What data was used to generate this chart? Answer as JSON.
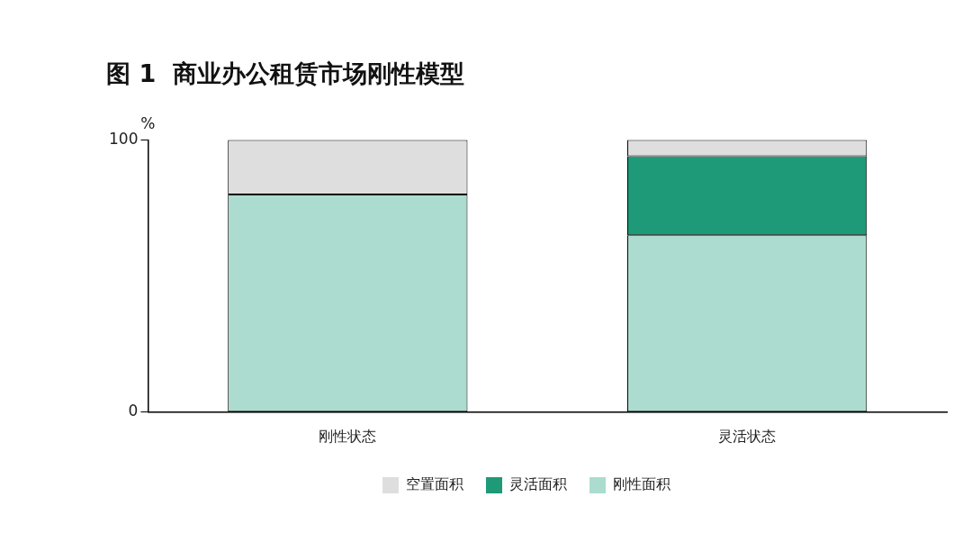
{
  "chart_data": {
    "type": "bar",
    "title": "图 1  商业办公租赁市场刚性模型",
    "ylabel": "%",
    "categories": [
      "刚性状态",
      "灵活状态"
    ],
    "stacked": true,
    "legend": "bottom",
    "ylim": [
      0,
      100
    ],
    "yticks": [
      0,
      100
    ],
    "series": [
      {
        "name": "刚性面积",
        "color": "#acdccf",
        "values": [
          80,
          65
        ]
      },
      {
        "name": "灵活面积",
        "color": "#1e9a78",
        "values": [
          0,
          29
        ]
      },
      {
        "name": "空置面积",
        "color": "#dedede",
        "values": [
          20,
          6
        ]
      }
    ]
  }
}
